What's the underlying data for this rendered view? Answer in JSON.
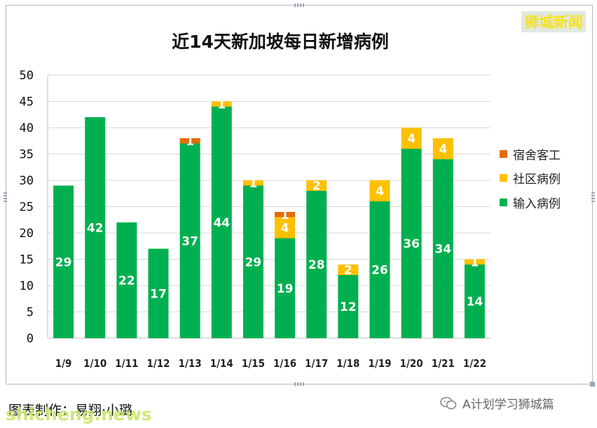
{
  "chart_data": {
    "type": "bar",
    "stacked": true,
    "title": "近14天新加坡每日新增病例",
    "categories": [
      "1/9",
      "1/10",
      "1/11",
      "1/12",
      "1/13",
      "1/14",
      "1/15",
      "1/16",
      "1/17",
      "1/18",
      "1/19",
      "1/20",
      "1/21",
      "1/22"
    ],
    "series": [
      {
        "name": "输入病例",
        "color": "#00b050",
        "values": [
          29,
          42,
          22,
          17,
          37,
          44,
          29,
          19,
          28,
          12,
          26,
          36,
          34,
          14
        ]
      },
      {
        "name": "社区病例",
        "color": "#ffc000",
        "values": [
          0,
          0,
          0,
          0,
          0,
          1,
          1,
          4,
          2,
          2,
          4,
          4,
          4,
          1
        ]
      },
      {
        "name": "宿舍客工",
        "color": "#e36c09",
        "values": [
          0,
          0,
          0,
          0,
          1,
          0,
          0,
          1,
          0,
          0,
          0,
          0,
          0,
          0
        ]
      }
    ],
    "ylim": [
      0,
      50
    ],
    "yticks": [
      0,
      5,
      10,
      15,
      20,
      25,
      30,
      35,
      40,
      45,
      50
    ],
    "grid": true,
    "legend_position": "right"
  },
  "badge": "狮城新闻",
  "credit": "图表制作：易翔·小璐",
  "watermark": "shicheng.news",
  "account": "A计划学习狮城篇",
  "icons": {
    "account": "wechat-icon"
  }
}
